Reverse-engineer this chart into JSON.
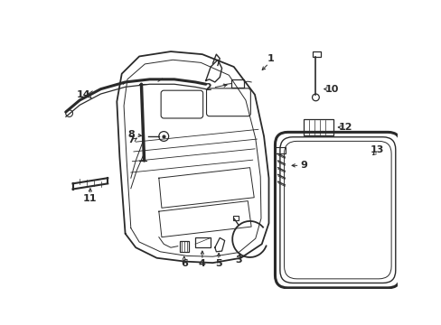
{
  "background": "#ffffff",
  "line_color": "#2a2a2a",
  "label_color": "#000000",
  "figsize": [
    4.89,
    3.6
  ],
  "dpi": 100
}
